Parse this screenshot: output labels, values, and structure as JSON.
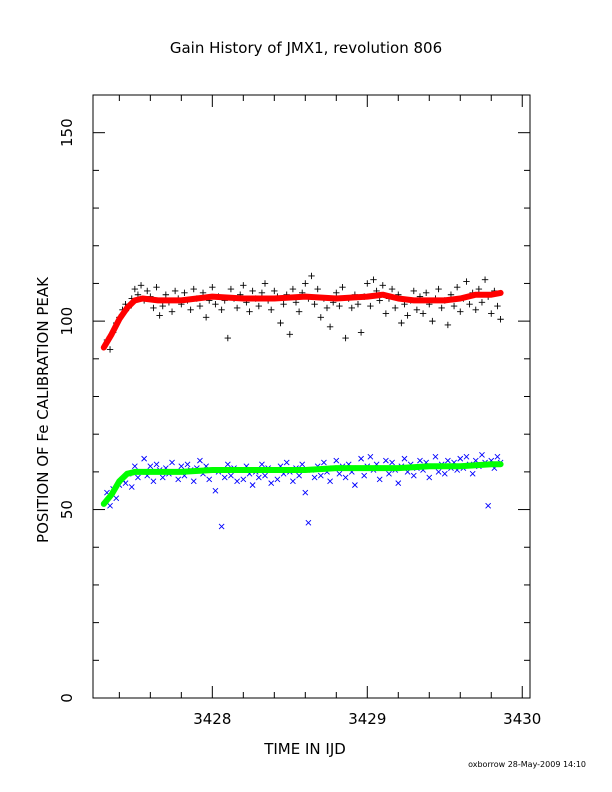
{
  "chart_data": {
    "type": "scatter",
    "title": "Gain History of JMX1, revolution 806",
    "xlabel": "TIME IN IJD",
    "ylabel": "POSITION OF Fe CALIBRATION PEAK",
    "xlim": [
      3427.23,
      3430.05
    ],
    "ylim": [
      0,
      160
    ],
    "x_ticks": [
      3428,
      3429,
      3430
    ],
    "y_ticks": [
      0,
      50,
      100,
      150
    ],
    "grid": false,
    "footer": "oxborrow 28-May-2009 14:10",
    "series": [
      {
        "marker": "plus",
        "color": "#000000",
        "points": [
          [
            3427.32,
            95.0
          ],
          [
            3427.34,
            92.5
          ],
          [
            3427.36,
            97.0
          ],
          [
            3427.38,
            99.5
          ],
          [
            3427.4,
            101.0
          ],
          [
            3427.42,
            103.0
          ],
          [
            3427.44,
            104.5
          ],
          [
            3427.46,
            103.5
          ],
          [
            3427.48,
            106.0
          ],
          [
            3427.5,
            108.5
          ],
          [
            3427.52,
            107.0
          ],
          [
            3427.54,
            109.5
          ],
          [
            3427.56,
            105.5
          ],
          [
            3427.58,
            108.0
          ],
          [
            3427.6,
            106.5
          ],
          [
            3427.62,
            103.5
          ],
          [
            3427.64,
            109.0
          ],
          [
            3427.66,
            101.5
          ],
          [
            3427.68,
            104.0
          ],
          [
            3427.7,
            107.0
          ],
          [
            3427.72,
            105.0
          ],
          [
            3427.74,
            102.5
          ],
          [
            3427.76,
            108.0
          ],
          [
            3427.78,
            106.0
          ],
          [
            3427.8,
            104.5
          ],
          [
            3427.82,
            107.5
          ],
          [
            3427.84,
            105.5
          ],
          [
            3427.86,
            103.0
          ],
          [
            3427.88,
            108.5
          ],
          [
            3427.9,
            106.0
          ],
          [
            3427.92,
            104.0
          ],
          [
            3427.94,
            107.5
          ],
          [
            3427.96,
            101.0
          ],
          [
            3427.98,
            105.5
          ],
          [
            3428.0,
            109.0
          ],
          [
            3428.02,
            104.5
          ],
          [
            3428.04,
            106.5
          ],
          [
            3428.06,
            103.0
          ],
          [
            3428.08,
            105.5
          ],
          [
            3428.1,
            95.5
          ],
          [
            3428.12,
            108.5
          ],
          [
            3428.14,
            106.0
          ],
          [
            3428.16,
            103.5
          ],
          [
            3428.18,
            107.0
          ],
          [
            3428.2,
            109.5
          ],
          [
            3428.22,
            105.0
          ],
          [
            3428.24,
            102.5
          ],
          [
            3428.26,
            108.0
          ],
          [
            3428.28,
            106.0
          ],
          [
            3428.3,
            104.0
          ],
          [
            3428.32,
            107.5
          ],
          [
            3428.34,
            110.0
          ],
          [
            3428.36,
            105.5
          ],
          [
            3428.38,
            103.0
          ],
          [
            3428.4,
            108.0
          ],
          [
            3428.42,
            106.5
          ],
          [
            3428.44,
            99.5
          ],
          [
            3428.46,
            104.5
          ],
          [
            3428.48,
            107.0
          ],
          [
            3428.5,
            96.5
          ],
          [
            3428.52,
            108.5
          ],
          [
            3428.54,
            105.0
          ],
          [
            3428.56,
            102.5
          ],
          [
            3428.58,
            107.5
          ],
          [
            3428.6,
            110.0
          ],
          [
            3428.62,
            106.0
          ],
          [
            3428.64,
            112.0
          ],
          [
            3428.66,
            104.5
          ],
          [
            3428.68,
            108.5
          ],
          [
            3428.7,
            101.0
          ],
          [
            3428.72,
            106.0
          ],
          [
            3428.74,
            103.5
          ],
          [
            3428.76,
            98.5
          ],
          [
            3428.78,
            105.0
          ],
          [
            3428.8,
            107.5
          ],
          [
            3428.82,
            104.0
          ],
          [
            3428.84,
            109.0
          ],
          [
            3428.86,
            95.5
          ],
          [
            3428.88,
            106.0
          ],
          [
            3428.9,
            103.5
          ],
          [
            3428.92,
            107.0
          ],
          [
            3428.94,
            104.5
          ],
          [
            3428.96,
            97.0
          ],
          [
            3428.98,
            106.5
          ],
          [
            3429.0,
            110.0
          ],
          [
            3429.02,
            104.0
          ],
          [
            3429.04,
            111.0
          ],
          [
            3429.06,
            108.0
          ],
          [
            3429.08,
            105.5
          ],
          [
            3429.1,
            109.5
          ],
          [
            3429.12,
            102.0
          ],
          [
            3429.14,
            106.0
          ],
          [
            3429.16,
            108.5
          ],
          [
            3429.18,
            103.5
          ],
          [
            3429.2,
            107.0
          ],
          [
            3429.22,
            99.5
          ],
          [
            3429.24,
            104.5
          ],
          [
            3429.26,
            101.5
          ],
          [
            3429.28,
            105.5
          ],
          [
            3429.3,
            108.0
          ],
          [
            3429.32,
            103.0
          ],
          [
            3429.34,
            106.5
          ],
          [
            3429.36,
            102.0
          ],
          [
            3429.38,
            107.5
          ],
          [
            3429.4,
            104.5
          ],
          [
            3429.42,
            100.0
          ],
          [
            3429.44,
            106.0
          ],
          [
            3429.46,
            108.5
          ],
          [
            3429.48,
            103.5
          ],
          [
            3429.5,
            105.5
          ],
          [
            3429.52,
            99.0
          ],
          [
            3429.54,
            107.0
          ],
          [
            3429.56,
            104.0
          ],
          [
            3429.58,
            109.0
          ],
          [
            3429.6,
            102.5
          ],
          [
            3429.62,
            106.0
          ],
          [
            3429.64,
            110.5
          ],
          [
            3429.66,
            104.5
          ],
          [
            3429.68,
            107.5
          ],
          [
            3429.7,
            103.0
          ],
          [
            3429.72,
            108.5
          ],
          [
            3429.74,
            105.0
          ],
          [
            3429.76,
            111.0
          ],
          [
            3429.78,
            106.5
          ],
          [
            3429.8,
            102.0
          ],
          [
            3429.82,
            108.0
          ],
          [
            3429.84,
            104.0
          ],
          [
            3429.86,
            100.5
          ]
        ]
      },
      {
        "marker": "cross",
        "color": "#0000ff",
        "points": [
          [
            3427.32,
            54.5
          ],
          [
            3427.34,
            51.0
          ],
          [
            3427.36,
            55.5
          ],
          [
            3427.38,
            53.0
          ],
          [
            3427.4,
            56.5
          ],
          [
            3427.42,
            58.0
          ],
          [
            3427.44,
            57.0
          ],
          [
            3427.46,
            59.5
          ],
          [
            3427.48,
            56.0
          ],
          [
            3427.5,
            61.5
          ],
          [
            3427.52,
            58.5
          ],
          [
            3427.54,
            60.0
          ],
          [
            3427.56,
            63.5
          ],
          [
            3427.58,
            59.0
          ],
          [
            3427.6,
            61.5
          ],
          [
            3427.62,
            57.5
          ],
          [
            3427.64,
            62.0
          ],
          [
            3427.66,
            60.5
          ],
          [
            3427.68,
            58.5
          ],
          [
            3427.7,
            61.0
          ],
          [
            3427.72,
            59.5
          ],
          [
            3427.74,
            62.5
          ],
          [
            3427.76,
            60.0
          ],
          [
            3427.78,
            58.0
          ],
          [
            3427.8,
            61.5
          ],
          [
            3427.82,
            59.0
          ],
          [
            3427.84,
            62.0
          ],
          [
            3427.86,
            60.5
          ],
          [
            3427.88,
            57.5
          ],
          [
            3427.9,
            61.0
          ],
          [
            3427.92,
            63.0
          ],
          [
            3427.94,
            59.5
          ],
          [
            3427.96,
            61.5
          ],
          [
            3427.98,
            58.0
          ],
          [
            3428.0,
            60.5
          ],
          [
            3428.02,
            55.0
          ],
          [
            3428.04,
            60.0
          ],
          [
            3428.06,
            45.5
          ],
          [
            3428.08,
            58.5
          ],
          [
            3428.1,
            62.0
          ],
          [
            3428.12,
            59.0
          ],
          [
            3428.14,
            61.0
          ],
          [
            3428.16,
            57.5
          ],
          [
            3428.18,
            60.5
          ],
          [
            3428.2,
            58.0
          ],
          [
            3428.22,
            61.5
          ],
          [
            3428.24,
            59.5
          ],
          [
            3428.26,
            56.5
          ],
          [
            3428.28,
            60.0
          ],
          [
            3428.3,
            58.5
          ],
          [
            3428.32,
            62.0
          ],
          [
            3428.34,
            59.0
          ],
          [
            3428.36,
            61.0
          ],
          [
            3428.38,
            57.0
          ],
          [
            3428.4,
            60.5
          ],
          [
            3428.42,
            58.0
          ],
          [
            3428.44,
            61.5
          ],
          [
            3428.46,
            59.5
          ],
          [
            3428.48,
            62.5
          ],
          [
            3428.5,
            60.0
          ],
          [
            3428.52,
            57.5
          ],
          [
            3428.54,
            61.0
          ],
          [
            3428.56,
            59.0
          ],
          [
            3428.58,
            62.0
          ],
          [
            3428.6,
            54.5
          ],
          [
            3428.62,
            46.5
          ],
          [
            3428.64,
            60.5
          ],
          [
            3428.66,
            58.5
          ],
          [
            3428.68,
            61.5
          ],
          [
            3428.7,
            59.0
          ],
          [
            3428.72,
            62.5
          ],
          [
            3428.74,
            60.0
          ],
          [
            3428.76,
            57.5
          ],
          [
            3428.78,
            61.0
          ],
          [
            3428.8,
            63.0
          ],
          [
            3428.82,
            59.5
          ],
          [
            3428.84,
            61.5
          ],
          [
            3428.86,
            58.5
          ],
          [
            3428.88,
            62.0
          ],
          [
            3428.9,
            60.0
          ],
          [
            3428.92,
            56.5
          ],
          [
            3428.94,
            61.0
          ],
          [
            3428.96,
            63.5
          ],
          [
            3428.98,
            59.0
          ],
          [
            3429.0,
            61.5
          ],
          [
            3429.02,
            64.0
          ],
          [
            3429.04,
            60.5
          ],
          [
            3429.06,
            62.0
          ],
          [
            3429.08,
            58.0
          ],
          [
            3429.1,
            61.0
          ],
          [
            3429.12,
            63.0
          ],
          [
            3429.14,
            59.5
          ],
          [
            3429.16,
            62.5
          ],
          [
            3429.18,
            60.5
          ],
          [
            3429.2,
            57.0
          ],
          [
            3429.22,
            61.5
          ],
          [
            3429.24,
            63.5
          ],
          [
            3429.26,
            60.0
          ],
          [
            3429.28,
            62.0
          ],
          [
            3429.3,
            59.0
          ],
          [
            3429.32,
            61.0
          ],
          [
            3429.34,
            63.0
          ],
          [
            3429.36,
            60.5
          ],
          [
            3429.38,
            62.5
          ],
          [
            3429.4,
            58.5
          ],
          [
            3429.42,
            61.5
          ],
          [
            3429.44,
            64.0
          ],
          [
            3429.46,
            60.0
          ],
          [
            3429.48,
            62.0
          ],
          [
            3429.5,
            59.5
          ],
          [
            3429.52,
            63.0
          ],
          [
            3429.54,
            61.0
          ],
          [
            3429.56,
            62.5
          ],
          [
            3429.58,
            60.5
          ],
          [
            3429.6,
            63.5
          ],
          [
            3429.62,
            61.0
          ],
          [
            3429.64,
            64.0
          ],
          [
            3429.66,
            62.0
          ],
          [
            3429.68,
            59.5
          ],
          [
            3429.7,
            63.0
          ],
          [
            3429.72,
            61.5
          ],
          [
            3429.74,
            64.5
          ],
          [
            3429.76,
            62.5
          ],
          [
            3429.78,
            51.0
          ],
          [
            3429.8,
            63.0
          ],
          [
            3429.82,
            61.0
          ],
          [
            3429.84,
            64.0
          ],
          [
            3429.86,
            62.5
          ]
        ]
      },
      {
        "marker": "line",
        "color": "#ff0000",
        "points": [
          [
            3427.3,
            93.0
          ],
          [
            3427.35,
            96.5
          ],
          [
            3427.4,
            100.5
          ],
          [
            3427.45,
            103.5
          ],
          [
            3427.5,
            105.5
          ],
          [
            3427.55,
            106.0
          ],
          [
            3427.65,
            105.5
          ],
          [
            3427.8,
            105.5
          ],
          [
            3428.0,
            106.5
          ],
          [
            3428.2,
            106.0
          ],
          [
            3428.4,
            106.0
          ],
          [
            3428.6,
            106.5
          ],
          [
            3428.8,
            106.0
          ],
          [
            3429.0,
            106.5
          ],
          [
            3429.1,
            107.0
          ],
          [
            3429.2,
            106.0
          ],
          [
            3429.3,
            105.5
          ],
          [
            3429.4,
            105.5
          ],
          [
            3429.5,
            105.5
          ],
          [
            3429.6,
            106.0
          ],
          [
            3429.7,
            107.0
          ],
          [
            3429.8,
            107.0
          ],
          [
            3429.86,
            107.5
          ]
        ]
      },
      {
        "marker": "line",
        "color": "#00ff00",
        "points": [
          [
            3427.3,
            51.5
          ],
          [
            3427.35,
            54.0
          ],
          [
            3427.4,
            57.5
          ],
          [
            3427.45,
            59.5
          ],
          [
            3427.5,
            60.0
          ],
          [
            3427.6,
            60.0
          ],
          [
            3427.8,
            60.0
          ],
          [
            3428.0,
            60.5
          ],
          [
            3428.2,
            60.5
          ],
          [
            3428.4,
            60.5
          ],
          [
            3428.6,
            60.5
          ],
          [
            3428.8,
            61.0
          ],
          [
            3429.0,
            61.0
          ],
          [
            3429.2,
            61.0
          ],
          [
            3429.4,
            61.5
          ],
          [
            3429.6,
            61.5
          ],
          [
            3429.8,
            62.0
          ],
          [
            3429.86,
            62.0
          ]
        ]
      }
    ]
  }
}
